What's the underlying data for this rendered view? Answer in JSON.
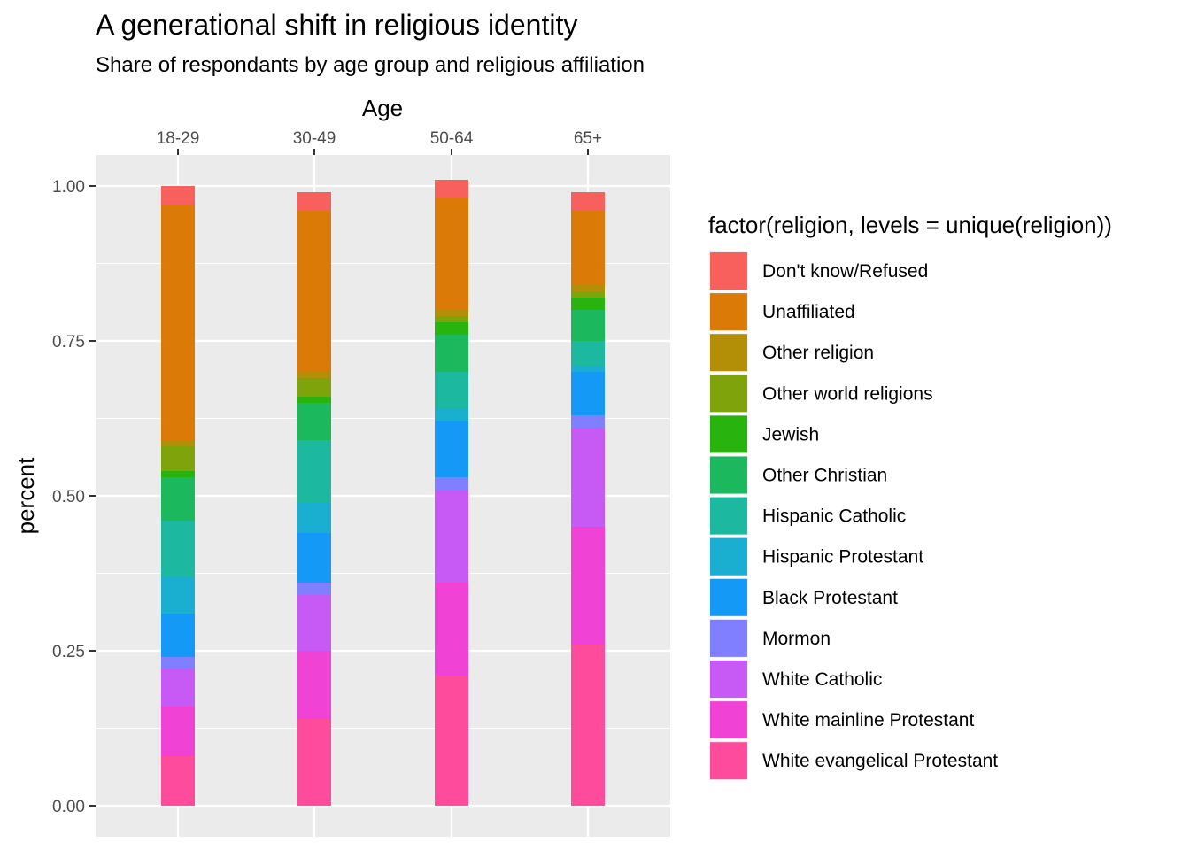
{
  "chart_data": {
    "type": "bar",
    "stacked": true,
    "title": "A generational shift in religious identity",
    "subtitle": "Share of respondants by age group and religious affiliation",
    "xlabel": "Age",
    "xaxis_position": "top",
    "ylabel": "percent",
    "ylim": [
      0,
      1
    ],
    "yticks": [
      "0.00",
      "0.25",
      "0.50",
      "0.75",
      "1.00"
    ],
    "grid": true,
    "legend_title": "factor(religion, levels = unique(religion))",
    "legend_position": "right",
    "categories": [
      "18-29",
      "30-49",
      "50-64",
      "65+"
    ],
    "series": [
      {
        "name": "White evangelical Protestant",
        "color": "#FF4B9B",
        "values": [
          0.08,
          0.14,
          0.21,
          0.26
        ]
      },
      {
        "name": "White mainline Protestant",
        "color": "#F043D6",
        "values": [
          0.08,
          0.11,
          0.15,
          0.19
        ]
      },
      {
        "name": "White Catholic",
        "color": "#C75AF5",
        "values": [
          0.06,
          0.09,
          0.15,
          0.16
        ]
      },
      {
        "name": "Mormon",
        "color": "#7F7FFF",
        "values": [
          0.02,
          0.02,
          0.02,
          0.02
        ]
      },
      {
        "name": "Black Protestant",
        "color": "#1599F7",
        "values": [
          0.07,
          0.08,
          0.09,
          0.07
        ]
      },
      {
        "name": "Hispanic Protestant",
        "color": "#1AAED1",
        "values": [
          0.06,
          0.05,
          0.02,
          0.01
        ]
      },
      {
        "name": "Hispanic Catholic",
        "color": "#1CB9A0",
        "values": [
          0.09,
          0.1,
          0.06,
          0.04
        ]
      },
      {
        "name": "Other Christian",
        "color": "#1BB85E",
        "values": [
          0.07,
          0.06,
          0.06,
          0.05
        ]
      },
      {
        "name": "Jewish",
        "color": "#28B30F",
        "values": [
          0.01,
          0.01,
          0.02,
          0.02
        ]
      },
      {
        "name": "Other world religions",
        "color": "#7FA30A",
        "values": [
          0.04,
          0.03,
          0.01,
          0.01
        ]
      },
      {
        "name": "Other religion",
        "color": "#B38E07",
        "values": [
          0.01,
          0.01,
          0.01,
          0.01
        ]
      },
      {
        "name": "Unaffiliated",
        "color": "#DB7A06",
        "values": [
          0.38,
          0.26,
          0.18,
          0.12
        ]
      },
      {
        "name": "Don't know/Refused",
        "color": "#F8605D",
        "values": [
          0.03,
          0.03,
          0.03,
          0.03
        ]
      }
    ]
  }
}
